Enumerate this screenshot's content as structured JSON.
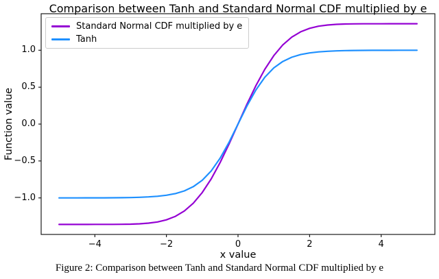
{
  "chart_data": {
    "type": "line",
    "title": "Comparison between Tanh and Standard Normal CDF multiplied by e",
    "xlabel": "x value",
    "ylabel": "Function value",
    "xlim": [
      -5.5,
      5.5
    ],
    "ylim": [
      -1.4951,
      1.4951
    ],
    "grid": false,
    "legend_position": "upper left",
    "axis_color": "#1a1a1a",
    "x": [
      -5.0,
      -4.75,
      -4.5,
      -4.25,
      -4.0,
      -3.75,
      -3.5,
      -3.25,
      -3.0,
      -2.75,
      -2.5,
      -2.25,
      -2.0,
      -1.75,
      -1.5,
      -1.25,
      -1.0,
      -0.75,
      -0.5,
      -0.25,
      0.0,
      0.25,
      0.5,
      0.75,
      1.0,
      1.25,
      1.5,
      1.75,
      2.0,
      2.25,
      2.5,
      2.75,
      3.0,
      3.25,
      3.5,
      3.75,
      4.0,
      4.25,
      4.5,
      4.75,
      5.0
    ],
    "series": [
      {
        "name": "Standard Normal CDF multiplied by e",
        "color": "#9400d3",
        "values": [
          -1.3591,
          -1.3591,
          -1.3591,
          -1.3591,
          -1.359,
          -1.3589,
          -1.3585,
          -1.3576,
          -1.3555,
          -1.351,
          -1.3423,
          -1.3259,
          -1.2973,
          -1.2502,
          -1.1775,
          -1.072,
          -0.9279,
          -0.7431,
          -0.5205,
          -0.2683,
          0.0,
          0.2683,
          0.5205,
          0.7431,
          0.9279,
          1.072,
          1.1775,
          1.2502,
          1.2973,
          1.3259,
          1.3423,
          1.351,
          1.3555,
          1.3576,
          1.3585,
          1.3589,
          1.359,
          1.3591,
          1.3591,
          1.3591,
          1.3591
        ]
      },
      {
        "name": "Tanh",
        "color": "#1e90ff",
        "values": [
          -0.9999,
          -0.9999,
          -0.9998,
          -0.9996,
          -0.9993,
          -0.9989,
          -0.9982,
          -0.997,
          -0.9951,
          -0.9919,
          -0.9866,
          -0.978,
          -0.964,
          -0.9414,
          -0.9051,
          -0.8483,
          -0.7616,
          -0.6351,
          -0.4621,
          -0.2449,
          0.0,
          0.2449,
          0.4621,
          0.6351,
          0.7616,
          0.8483,
          0.9051,
          0.9414,
          0.964,
          0.978,
          0.9866,
          0.9919,
          0.9951,
          0.997,
          0.9982,
          0.9989,
          0.9993,
          0.9996,
          0.9998,
          0.9999,
          0.9999
        ]
      }
    ],
    "xticks": {
      "values": [
        -4,
        -2,
        0,
        2,
        4
      ],
      "labels": [
        "−4",
        "−2",
        "0",
        "2",
        "4"
      ]
    },
    "yticks": {
      "values": [
        1.0,
        0.5,
        0.0,
        -0.5,
        -1.0
      ],
      "labels": [
        "1.0",
        "0.5",
        "0.0",
        "−0.5",
        "−1.0"
      ]
    }
  },
  "caption": "Figure 2: Comparison between Tanh and Standard Normal CDF multiplied by e"
}
